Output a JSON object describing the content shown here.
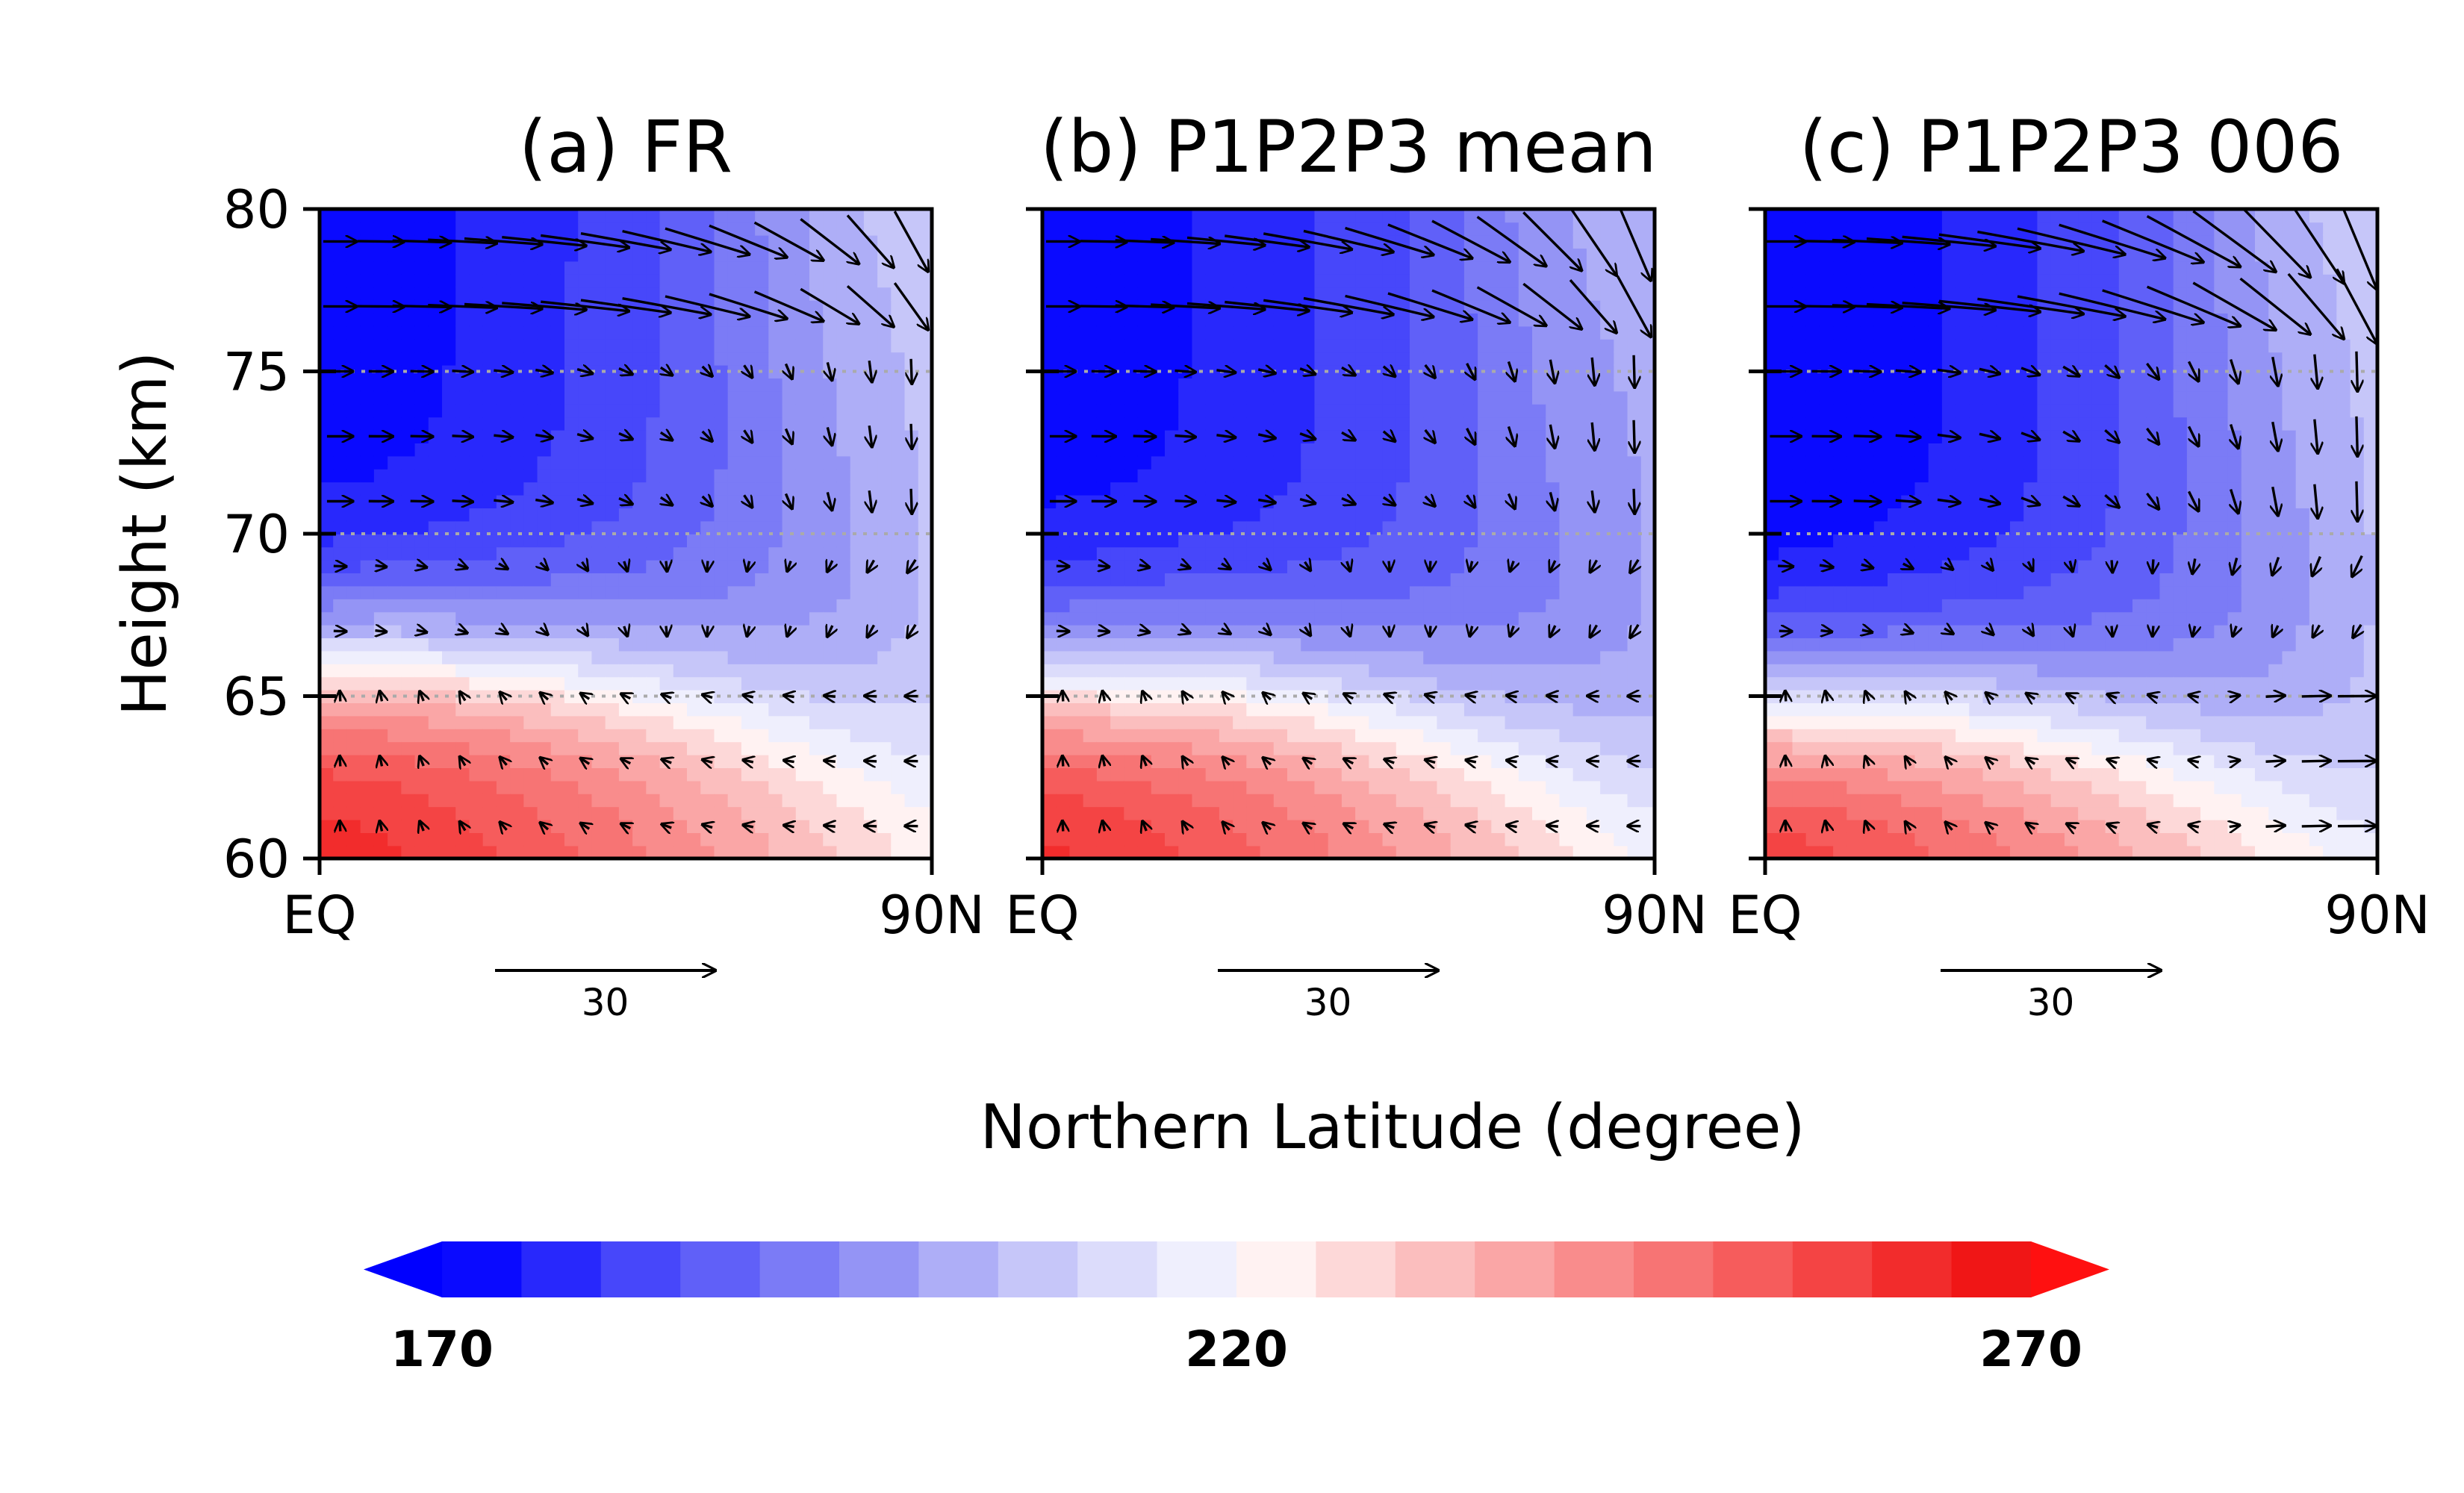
{
  "chart_data": [
    {
      "type": "heatmap",
      "title": "(a) FR",
      "variable": "temperature contours with wind vectors",
      "xlabel": "Northern Latitude (degree)",
      "ylabel": "Height (km)",
      "xlim": [
        0,
        90
      ],
      "ylim": [
        60,
        80
      ],
      "xtick_labels": [
        "EQ",
        "90N"
      ],
      "ytick_labels": [
        "60",
        "65",
        "70",
        "75",
        "80"
      ],
      "reference_vector_label": "30",
      "zero_wind_height_km": 66.0,
      "temperature_summary": "warm (~250-265) near 60 km at low latitudes, cold (~175) above 75 km at low latitudes, weakening poleward"
    },
    {
      "type": "heatmap",
      "title": "(b) P1P2P3 mean",
      "variable": "temperature contours with wind vectors",
      "xlabel": "Northern Latitude (degree)",
      "ylabel": "Height (km)",
      "xlim": [
        0,
        90
      ],
      "ylim": [
        60,
        80
      ],
      "xtick_labels": [
        "EQ",
        "90N"
      ],
      "ytick_labels": [
        "60",
        "65",
        "70",
        "75",
        "80"
      ],
      "reference_vector_label": "30",
      "zero_wind_height_km": 65.5,
      "temperature_summary": "similar to FR with slightly cooler mid-latitude mesosphere"
    },
    {
      "type": "heatmap",
      "title": "(c) P1P2P3 006",
      "variable": "temperature contours with wind vectors",
      "xlabel": "Northern Latitude (degree)",
      "ylabel": "Height (km)",
      "xlim": [
        0,
        90
      ],
      "ylim": [
        60,
        80
      ],
      "xtick_labels": [
        "EQ",
        "90N"
      ],
      "ytick_labels": [
        "60",
        "65",
        "70",
        "75",
        "80"
      ],
      "reference_vector_label": "30",
      "zero_wind_height_km": 64.8,
      "temperature_summary": "stronger polar downwelling with larger poleward winds near 62 km"
    }
  ],
  "colorbar": {
    "min": 170,
    "max": 270,
    "step": 5,
    "tick_labels": [
      "170",
      "220",
      "270"
    ],
    "colors": [
      "#0a0aff",
      "#2828fc",
      "#4747fa",
      "#6060f8",
      "#7b7bf6",
      "#9494f5",
      "#aeaef7",
      "#c6c6f9",
      "#dcdcfb",
      "#efeffd",
      "#fff2f2",
      "#fdd8d8",
      "#fbbebe",
      "#faa6a6",
      "#f98c8c",
      "#f77474",
      "#f65c5c",
      "#f44444",
      "#f22c2c",
      "#f01616"
    ],
    "extend_low_color": "#0000ff",
    "extend_high_color": "#ff1010"
  },
  "shared_xlabel": "Northern Latitude (degree)"
}
